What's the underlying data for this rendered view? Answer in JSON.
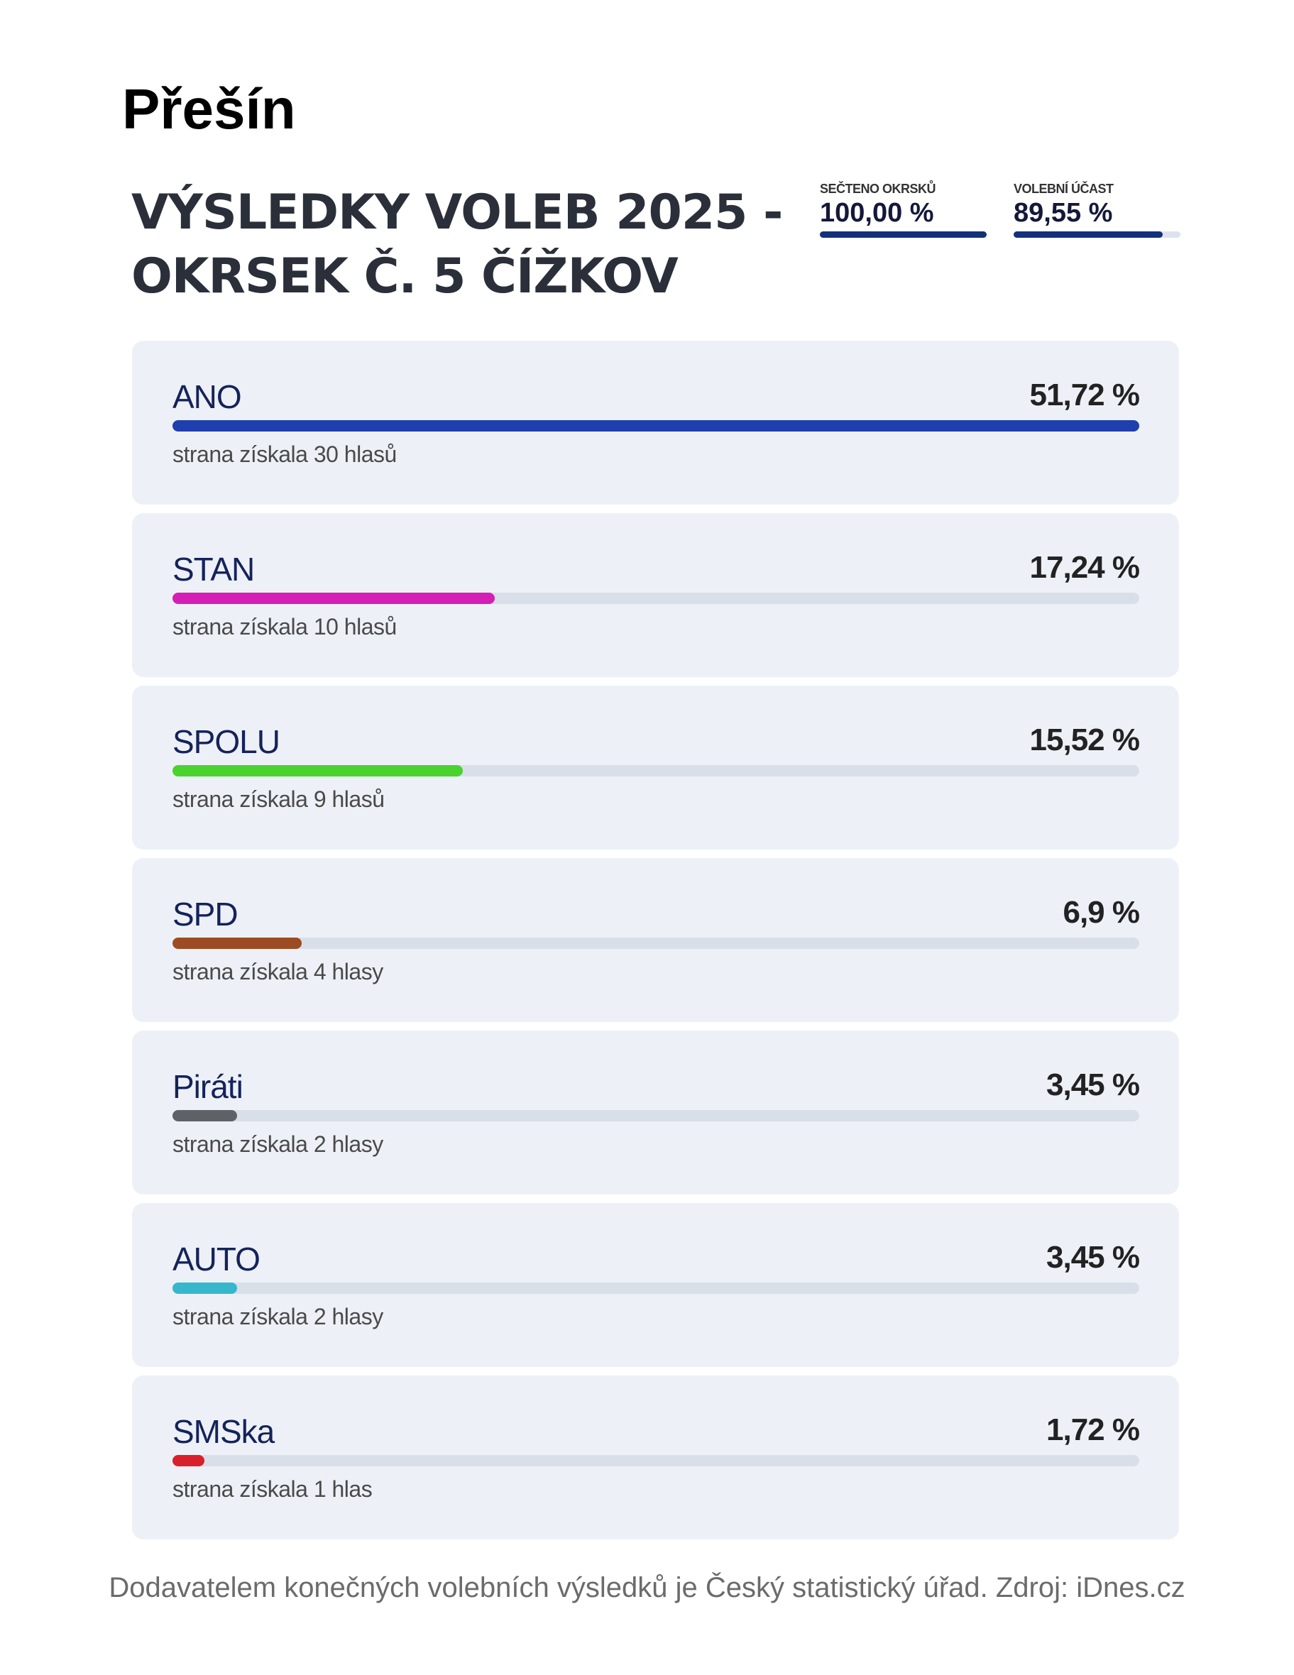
{
  "place": "Přešín",
  "heading": {
    "line1": "VÝSLEDKY VOLEB 2025 -",
    "line2": "OKRSEK Č. 5 ČÍŽKOV"
  },
  "stats": [
    {
      "label": "SEČTENO OKRSKŮ",
      "value": "100,00 %",
      "fill_percent": 100
    },
    {
      "label": "VOLEBNÍ ÚČAST",
      "value": "89,55 %",
      "fill_percent": 89.55
    }
  ],
  "parties": [
    {
      "name": "ANO",
      "percent": "51,72 %",
      "percent_value": 51.72,
      "votes": "strana získala 30 hlasů",
      "color": "#1f3fae"
    },
    {
      "name": "STAN",
      "percent": "17,24 %",
      "percent_value": 17.24,
      "votes": "strana získala 10 hlasů",
      "color": "#d41eb6"
    },
    {
      "name": "SPOLU",
      "percent": "15,52 %",
      "percent_value": 15.52,
      "votes": "strana získala 9 hlasů",
      "color": "#4ad22f"
    },
    {
      "name": "SPD",
      "percent": "6,9 %",
      "percent_value": 6.9,
      "votes": "strana získala 4 hlasy",
      "color": "#9c4b22"
    },
    {
      "name": "Piráti",
      "percent": "3,45 %",
      "percent_value": 3.45,
      "votes": "strana získala 2 hlasy",
      "color": "#5e6266"
    },
    {
      "name": "AUTO",
      "percent": "3,45 %",
      "percent_value": 3.45,
      "votes": "strana získala 2 hlasy",
      "color": "#36b7cc"
    },
    {
      "name": "SMSka",
      "percent": "1,72 %",
      "percent_value": 1.72,
      "votes": "strana získala 1 hlas",
      "color": "#d9202a"
    }
  ],
  "footer": "Dodavatelem konečných volebních výsledků je Český statistický úřad. Zdroj: iDnes.cz"
}
